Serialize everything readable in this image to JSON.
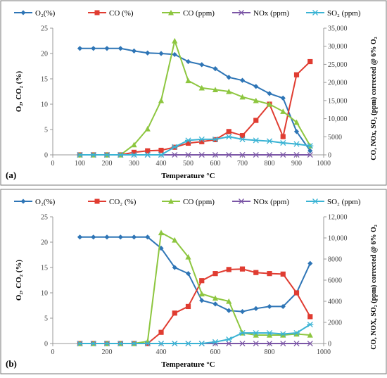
{
  "chart_data": [
    {
      "type": "line",
      "panel_label": "(a)",
      "xlabel": "Temperature °C",
      "ylabel": "O₂, CO₂ (%)",
      "y2label": "CO, NOx, SO₂ (ppm) corrected @ 6% O₂",
      "xlim": [
        0,
        1000
      ],
      "ylim": [
        0,
        25
      ],
      "y2lim": [
        0,
        35000
      ],
      "x_ticks": [
        "0",
        "100",
        "200",
        "300",
        "400",
        "500",
        "600",
        "700",
        "800",
        "900",
        "1000"
      ],
      "y_ticks": [
        "0",
        "5",
        "10",
        "15",
        "20",
        "25"
      ],
      "y2_ticks": [
        "0",
        "5000",
        "10,000",
        "15,000",
        "20,000",
        "25,000",
        "30,000",
        "35,000"
      ],
      "legend_position": "top",
      "x": [
        100,
        150,
        200,
        250,
        300,
        350,
        400,
        450,
        500,
        550,
        600,
        650,
        700,
        750,
        800,
        850,
        900,
        950
      ],
      "series": [
        {
          "name": "O₂(%)",
          "axis": "left",
          "color": "#2e75b6",
          "marker": "diamond",
          "values": [
            21,
            21,
            21,
            21,
            20.5,
            20.1,
            20,
            19.8,
            18.4,
            17.8,
            17,
            15.3,
            14.7,
            13.5,
            12.1,
            11.2,
            4.6,
            0.8
          ]
        },
        {
          "name": "CO  (%)",
          "axis": "left",
          "color": "#e03c31",
          "marker": "square",
          "values": [
            0,
            0,
            0,
            0,
            0.5,
            0.8,
            0.9,
            1.5,
            2.3,
            2.6,
            3.0,
            4.6,
            3.8,
            6.8,
            10,
            3.6,
            15.8,
            18.4
          ]
        },
        {
          "name": "CO (ppm)",
          "axis": "right",
          "color": "#8dc63f",
          "marker": "triangle",
          "values": [
            0,
            0,
            0,
            0,
            2800,
            7200,
            15000,
            31500,
            20500,
            18500,
            18000,
            17500,
            16000,
            15000,
            14000,
            12000,
            9000,
            2500
          ]
        },
        {
          "name": "NOx (ppm)",
          "axis": "right",
          "color": "#7b56a6",
          "marker": "x",
          "values": [
            0,
            0,
            0,
            0,
            0,
            0,
            0,
            0,
            0,
            0,
            0,
            0,
            0,
            0,
            0,
            0,
            0,
            0
          ]
        },
        {
          "name": "SO₂ (ppm)",
          "axis": "right",
          "color": "#3ab3d4",
          "marker": "asterisk",
          "values": [
            0,
            0,
            0,
            0,
            0,
            0,
            0,
            2200,
            4000,
            4300,
            4300,
            5000,
            4300,
            4000,
            3800,
            3300,
            3000,
            2500
          ]
        }
      ]
    },
    {
      "type": "line",
      "panel_label": "(b)",
      "xlabel": "Temperature °C",
      "ylabel": "O₂, CO₂ (%)",
      "y2label": "CO, NOX, SO₂ (ppm) corrected @ 6% O₂",
      "xlim": [
        0,
        1000
      ],
      "ylim": [
        0,
        25
      ],
      "y2lim": [
        0,
        12000
      ],
      "x_ticks": [
        "0",
        "200",
        "400",
        "600",
        "800",
        "1000"
      ],
      "x_tick_values": [
        0,
        200,
        400,
        600,
        800,
        1000
      ],
      "y_ticks": [
        "0",
        "5",
        "10",
        "15",
        "20",
        "25"
      ],
      "y2_ticks": [
        "0",
        "2000",
        "4000",
        "6000",
        "8000",
        "10,000",
        "12,000"
      ],
      "legend_position": "top",
      "x": [
        100,
        150,
        200,
        250,
        300,
        350,
        400,
        450,
        500,
        550,
        600,
        650,
        700,
        750,
        800,
        850,
        900,
        950
      ],
      "series": [
        {
          "name": "O₂(%)",
          "axis": "left",
          "color": "#2e75b6",
          "marker": "diamond",
          "values": [
            21,
            21,
            21,
            21,
            21,
            21,
            18.8,
            15,
            13.8,
            8.5,
            7.8,
            6.5,
            6.3,
            6.9,
            7.3,
            7.3,
            10,
            15.8
          ]
        },
        {
          "name": "CO₂ (%)",
          "axis": "left",
          "color": "#e03c31",
          "marker": "square",
          "values": [
            0,
            0,
            0,
            0,
            0,
            0,
            2.2,
            6,
            7.3,
            12.4,
            13.8,
            14.6,
            14.7,
            14,
            13.8,
            13.7,
            10,
            5.3
          ]
        },
        {
          "name": "CO (ppm)",
          "axis": "right",
          "color": "#8dc63f",
          "marker": "triangle",
          "values": [
            0,
            0,
            0,
            0,
            0,
            200,
            10500,
            9800,
            8200,
            4700,
            4300,
            4000,
            1000,
            800,
            800,
            800,
            900,
            800
          ]
        },
        {
          "name": "NOx (ppm)",
          "axis": "right",
          "color": "#7b56a6",
          "marker": "x",
          "values": [
            0,
            0,
            0,
            0,
            0,
            0,
            0,
            0,
            0,
            0,
            0,
            0,
            0,
            0,
            0,
            0,
            0,
            0
          ]
        },
        {
          "name": "SO₂ (ppm)",
          "axis": "right",
          "color": "#3ab3d4",
          "marker": "asterisk",
          "values": [
            0,
            0,
            0,
            0,
            0,
            0,
            0,
            0,
            0,
            0,
            150,
            400,
            1000,
            1000,
            1000,
            900,
            1000,
            1800
          ]
        }
      ]
    }
  ]
}
